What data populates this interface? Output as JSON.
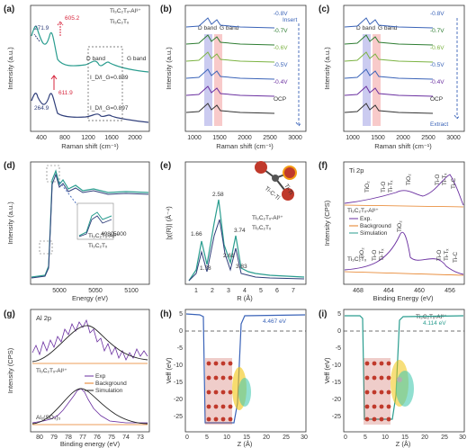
{
  "colors": {
    "teal": "#2a9d8f",
    "navy": "#2f3e7a",
    "red": "#d7263d",
    "purple": "#6a2fa0",
    "orange": "#e67e22",
    "green": "#4caf50",
    "blue": "#3a63b8",
    "pink": "#f4a6a6",
    "lavender": "#a9a9e6",
    "dgreen": "#2e7d32",
    "lime": "#7cb342",
    "gray": "#777"
  },
  "panels": {
    "a": {
      "label": "(a)",
      "legend1": "Ti₃C₂Tₓ-Al³⁺",
      "legend2": "Ti₃C₂Tₓ",
      "xlabel": "Raman shift (cm⁻¹)",
      "ylabel": "Intensity (a.u.)",
      "xticks": [
        "400",
        "800",
        "1200",
        "1600",
        "2000"
      ],
      "peaks": [
        "605.2",
        "271.9",
        "611.9",
        "264.9"
      ],
      "ratio1": "I_D/I_G=0.889",
      "ratio2": "I_D/I_G=0.897",
      "dband": "D band",
      "gband": "G band"
    },
    "b": {
      "label": "(b)",
      "dband": "D band",
      "gband": "G band",
      "arrow_label": "Insert",
      "xlabel": "Raman shift (cm⁻¹)",
      "ylabel": "Intensity (a.u.)",
      "xticks": [
        "1000",
        "1500",
        "2000",
        "2500",
        "3000"
      ],
      "curves": [
        "-0.8V",
        "-0.7V",
        "-0.6V",
        "-0.5V",
        "-0.4V",
        "OCP"
      ]
    },
    "c": {
      "label": "(c)",
      "dband": "D band",
      "gband": "G band",
      "arrow_label": "Extract",
      "xlabel": "Raman shift (cm⁻¹)",
      "ylabel": "Intensity (a.u.)",
      "xticks": [
        "1000",
        "1500",
        "2000",
        "2500",
        "3000"
      ],
      "curves": [
        "-0.8V",
        "-0.7V",
        "-0.6V",
        "-0.5V",
        "-0.4V",
        "OCP"
      ]
    },
    "d": {
      "label": "(d)",
      "legend1": "Ti₃C₂Tₓ-Al³⁺",
      "legend2": "Ti₃C₂Tₓ",
      "xlabel": "Energy (eV)",
      "ylabel": "Intensity (a.u.)",
      "xticks": [
        "5000",
        "5050",
        "5100"
      ],
      "inset_xticks": [
        "4980",
        "5000"
      ]
    },
    "e": {
      "label": "(e)",
      "legend1": "Ti₃C₂Tₓ-Al³⁺",
      "legend2": "Ti₃C₂Tₓ",
      "xlabel": "R (Å)",
      "ylabel": "|χ(R)| (Å⁻⁴)",
      "xticks": [
        "1",
        "2",
        "3",
        "4",
        "5",
        "6",
        "7"
      ],
      "values": [
        "2.58",
        "1.66",
        "3.74",
        "2.61",
        "1.78",
        "3.83"
      ],
      "bond1": "Ti-Ti",
      "bond2": "Ti-C-Ti"
    },
    "f": {
      "label": "(f)",
      "title": "Ti 2p",
      "xlabel": "Binding Energy (eV)",
      "ylabel": "Intensity (CPS)",
      "xticks": [
        "468",
        "464",
        "460",
        "456"
      ],
      "s1": "Ti₃C₂Tₓ-Al³⁺",
      "s2": "Ti₃C₂Tₓ",
      "legend": [
        "Exp.",
        "Background",
        "Simulation"
      ],
      "peaks_top": [
        "TiO₂",
        "Ti-O",
        "Ti-Tₓ",
        "TiO₂",
        "Ti-O",
        "Ti-Tₓ",
        "Ti-C"
      ],
      "peaks_bot": [
        "TiO₂",
        "Ti-O",
        "Ti-Tₓ",
        "TiO₂",
        "Ti-O",
        "Ti-Tₓ",
        "Ti-C"
      ]
    },
    "g": {
      "label": "(g)",
      "title": "Al 2p",
      "xlabel": "Binding energy (eV)",
      "ylabel": "Intensity (CPS)",
      "xticks": [
        "80",
        "79",
        "78",
        "77",
        "76",
        "75",
        "74",
        "73"
      ],
      "s1": "Ti₃C₂Tₓ-Al³⁺",
      "s2": "Al₂(SO₄)₃",
      "legend": [
        "Exp",
        "Background",
        "Simulation"
      ]
    },
    "h": {
      "label": "(h)",
      "value": "4.467 eV",
      "xlabel": "Z (Å)",
      "ylabel": "Veff (eV)",
      "xticks": [
        "0",
        "5",
        "10",
        "15",
        "20",
        "25",
        "30"
      ],
      "yticks": [
        "5",
        "0",
        "-5",
        "-10",
        "-15",
        "-20",
        "-25"
      ]
    },
    "i": {
      "label": "(i)",
      "value": "4.114 eV",
      "title": "Ti₃C₂Tₓ-Al³⁺",
      "xlabel": "Z (Å)",
      "ylabel": "Veff (eV)",
      "xticks": [
        "0",
        "5",
        "10",
        "15",
        "20",
        "25",
        "30"
      ],
      "yticks": [
        "5",
        "0",
        "-5",
        "-10",
        "-15",
        "-20",
        "-25"
      ]
    }
  },
  "chart_data": [
    {
      "type": "line",
      "panel": "a",
      "xlabel": "Raman shift (cm⁻¹)",
      "ylabel": "Intensity (a.u.)",
      "xlim": [
        200,
        2200
      ],
      "series": [
        {
          "name": "Ti₃C₂Tₓ-Al³⁺",
          "x": [
            200,
            271.9,
            400,
            605.2,
            900,
            1350,
            1580,
            2200
          ],
          "y": [
            0.9,
            1.0,
            0.72,
            0.98,
            0.55,
            0.62,
            0.6,
            0.42
          ]
        },
        {
          "name": "Ti₃C₂Tₓ",
          "x": [
            200,
            264.9,
            400,
            611.9,
            900,
            1350,
            1580,
            2200
          ],
          "y": [
            0.3,
            0.42,
            0.28,
            0.5,
            0.2,
            0.24,
            0.23,
            0.12
          ]
        }
      ]
    },
    {
      "type": "line",
      "panel": "b",
      "xlabel": "Raman shift (cm⁻¹)",
      "ylabel": "Intensity (a.u.)",
      "xlim": [
        800,
        3200
      ],
      "series": [
        {
          "name": "-0.8V"
        },
        {
          "name": "-0.7V"
        },
        {
          "name": "-0.6V"
        },
        {
          "name": "-0.5V"
        },
        {
          "name": "-0.4V"
        },
        {
          "name": "OCP"
        }
      ]
    },
    {
      "type": "line",
      "panel": "c",
      "xlabel": "Raman shift (cm⁻¹)",
      "ylabel": "Intensity (a.u.)",
      "xlim": [
        800,
        3200
      ],
      "series": [
        {
          "name": "-0.8V"
        },
        {
          "name": "-0.7V"
        },
        {
          "name": "-0.6V"
        },
        {
          "name": "-0.5V"
        },
        {
          "name": "-0.4V"
        },
        {
          "name": "OCP"
        }
      ]
    },
    {
      "type": "line",
      "panel": "e",
      "xlabel": "R (Å)",
      "ylabel": "|χ(R)| (Å⁻⁴)",
      "xlim": [
        0,
        7
      ],
      "series": [
        {
          "name": "Ti₃C₂Tₓ-Al³⁺",
          "x": [
            0.5,
            1.66,
            2.0,
            2.58,
            3.0,
            3.74,
            4.5,
            6.5
          ],
          "y": [
            0.1,
            0.62,
            0.3,
            1.0,
            0.35,
            0.6,
            0.25,
            0.1
          ]
        },
        {
          "name": "Ti₃C₂Tₓ",
          "x": [
            0.5,
            1.78,
            2.1,
            2.61,
            3.1,
            3.83,
            4.6,
            6.5
          ],
          "y": [
            0.08,
            0.45,
            0.2,
            0.72,
            0.22,
            0.42,
            0.18,
            0.06
          ]
        }
      ]
    },
    {
      "type": "line",
      "panel": "h",
      "xlabel": "Z (Å)",
      "ylabel": "Veff (eV)",
      "xlim": [
        0,
        30
      ],
      "ylim": [
        -28,
        7
      ],
      "series": [
        {
          "x": [
            0,
            3,
            4.5,
            5,
            12,
            13,
            14,
            15,
            30
          ],
          "y": [
            4.467,
            4.467,
            3,
            -27,
            -27,
            -20,
            3,
            4.467,
            4.467
          ]
        }
      ]
    },
    {
      "type": "line",
      "panel": "i",
      "xlabel": "Z (Å)",
      "ylabel": "Veff (eV)",
      "xlim": [
        0,
        30
      ],
      "ylim": [
        -28,
        7
      ],
      "series": [
        {
          "x": [
            0,
            4.5,
            5,
            12,
            13,
            14,
            15,
            30
          ],
          "y": [
            4.114,
            4.114,
            -26,
            -26,
            -18,
            2,
            4.114,
            4.114
          ]
        }
      ]
    }
  ]
}
